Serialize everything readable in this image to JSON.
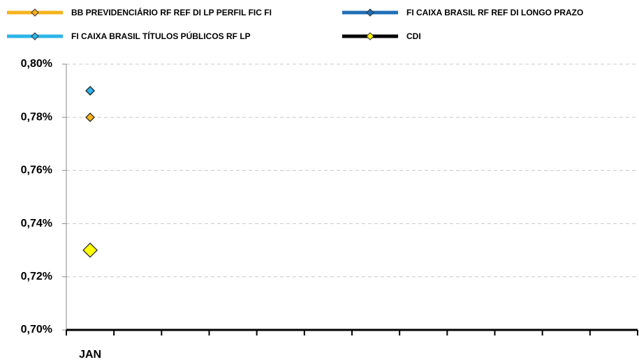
{
  "chart_data": {
    "type": "line",
    "categories": [
      "JAN",
      null,
      null,
      null,
      null,
      null,
      null,
      null,
      null,
      null,
      null,
      null
    ],
    "series": [
      {
        "name": "BB PREVIDENCIÁRIO RF REF DI LP PERFIL FIC FI",
        "color": "#f5b21c",
        "values": [
          0.78,
          null,
          null,
          null,
          null,
          null,
          null,
          null,
          null,
          null,
          null,
          null
        ]
      },
      {
        "name": "FI CAIXA BRASIL RF REF DI LONGO PRAZO",
        "color": "#1f6eb5",
        "values": [
          0.79,
          null,
          null,
          null,
          null,
          null,
          null,
          null,
          null,
          null,
          null,
          null
        ]
      },
      {
        "name": "FI CAIXA BRASIL TÍTULOS PÚBLICOS RF LP",
        "color": "#2bb5e8",
        "values": [
          0.79,
          null,
          null,
          null,
          null,
          null,
          null,
          null,
          null,
          null,
          null,
          null
        ]
      },
      {
        "name": "CDI",
        "color": "#000000",
        "marker_color": "#ffff00",
        "values": [
          0.73,
          null,
          null,
          null,
          null,
          null,
          null,
          null,
          null,
          null,
          null,
          null
        ]
      }
    ],
    "ylim": [
      0.7,
      0.8
    ],
    "yticks": [
      {
        "value": 0.7,
        "label": "0,70%"
      },
      {
        "value": 0.72,
        "label": "0,72%"
      },
      {
        "value": 0.74,
        "label": "0,74%"
      },
      {
        "value": 0.76,
        "label": "0,76%"
      },
      {
        "value": 0.78,
        "label": "0,78%"
      },
      {
        "value": 0.8,
        "label": "0,80%"
      }
    ],
    "grid": true,
    "legend": "top"
  }
}
